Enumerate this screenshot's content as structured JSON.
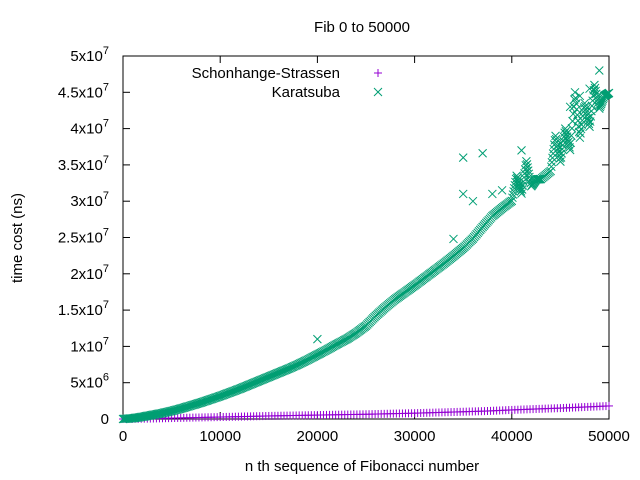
{
  "chart_data": {
    "type": "scatter",
    "title": "Fib 0 to 50000",
    "xlabel": "n th sequence of Fibonacci number",
    "ylabel": "time cost (ns)",
    "xlim": [
      0,
      50000
    ],
    "ylim": [
      0,
      50000000
    ],
    "x_ticks": [
      {
        "value": 0,
        "label": "0"
      },
      {
        "value": 10000,
        "label": "10000"
      },
      {
        "value": 20000,
        "label": "20000"
      },
      {
        "value": 30000,
        "label": "30000"
      },
      {
        "value": 40000,
        "label": "40000"
      },
      {
        "value": 50000,
        "label": "50000"
      }
    ],
    "y_ticks": [
      {
        "value": 0,
        "mant": "0",
        "exp": ""
      },
      {
        "value": 5000000,
        "mant": "5x10",
        "exp": "6"
      },
      {
        "value": 10000000,
        "mant": "1x10",
        "exp": "7"
      },
      {
        "value": 15000000,
        "mant": "1.5x10",
        "exp": "7"
      },
      {
        "value": 20000000,
        "mant": "2x10",
        "exp": "7"
      },
      {
        "value": 25000000,
        "mant": "2.5x10",
        "exp": "7"
      },
      {
        "value": 30000000,
        "mant": "3x10",
        "exp": "7"
      },
      {
        "value": 35000000,
        "mant": "3.5x10",
        "exp": "7"
      },
      {
        "value": 40000000,
        "mant": "4x10",
        "exp": "7"
      },
      {
        "value": 45000000,
        "mant": "4.5x10",
        "exp": "7"
      },
      {
        "value": 50000000,
        "mant": "5x10",
        "exp": "7"
      }
    ],
    "grid": false,
    "legend_position": "top-left",
    "series": [
      {
        "name": "Schonhange-Strassen",
        "marker": "plus",
        "color": "#9400d3",
        "points": [
          [
            0,
            0
          ],
          [
            2500,
            50000
          ],
          [
            5000,
            130000
          ],
          [
            7500,
            200000
          ],
          [
            10000,
            270000
          ],
          [
            12500,
            340000
          ],
          [
            15000,
            420000
          ],
          [
            17500,
            480000
          ],
          [
            20000,
            540000
          ],
          [
            22500,
            600000
          ],
          [
            25000,
            650000
          ],
          [
            27500,
            730000
          ],
          [
            30000,
            800000
          ],
          [
            32500,
            900000
          ],
          [
            35000,
            1000000
          ],
          [
            37500,
            1100000
          ],
          [
            40000,
            1250000
          ],
          [
            42500,
            1380000
          ],
          [
            45000,
            1500000
          ],
          [
            47500,
            1650000
          ],
          [
            50000,
            1800000
          ]
        ]
      },
      {
        "name": "Karatsuba",
        "marker": "cross",
        "color": "#009e73",
        "points": [
          [
            0,
            0
          ],
          [
            1000,
            100000
          ],
          [
            2000,
            300000
          ],
          [
            3000,
            550000
          ],
          [
            4000,
            800000
          ],
          [
            5000,
            1100000
          ],
          [
            6000,
            1450000
          ],
          [
            7000,
            1850000
          ],
          [
            8000,
            2250000
          ],
          [
            9000,
            2700000
          ],
          [
            10000,
            3150000
          ],
          [
            11000,
            3650000
          ],
          [
            12000,
            4150000
          ],
          [
            13000,
            4700000
          ],
          [
            14000,
            5250000
          ],
          [
            15000,
            5800000
          ],
          [
            16000,
            6350000
          ],
          [
            17000,
            6900000
          ],
          [
            18000,
            7500000
          ],
          [
            19000,
            8150000
          ],
          [
            20000,
            8850000
          ],
          [
            21000,
            9550000
          ],
          [
            22000,
            10300000
          ],
          [
            23000,
            11000000
          ],
          [
            24000,
            11850000
          ],
          [
            25000,
            12850000
          ],
          [
            26000,
            14200000
          ],
          [
            27000,
            15400000
          ],
          [
            28000,
            16500000
          ],
          [
            29000,
            17450000
          ],
          [
            30000,
            18400000
          ],
          [
            31000,
            19400000
          ],
          [
            32000,
            20400000
          ],
          [
            33000,
            21400000
          ],
          [
            34000,
            22450000
          ],
          [
            35000,
            23550000
          ],
          [
            36000,
            24850000
          ],
          [
            37000,
            26450000
          ],
          [
            38000,
            27950000
          ],
          [
            39000,
            29050000
          ],
          [
            40000,
            30050000
          ],
          [
            41000,
            31050000
          ],
          [
            42000,
            32050000
          ],
          [
            43000,
            33050000
          ],
          [
            44000,
            34150000
          ],
          [
            45000,
            35450000
          ],
          [
            46000,
            37050000
          ],
          [
            47000,
            38750000
          ],
          [
            48000,
            40250000
          ],
          [
            49000,
            42750000
          ],
          [
            50000,
            44900000
          ],
          [
            20000,
            11000000
          ],
          [
            34000,
            24800000
          ],
          [
            35000,
            36000000
          ],
          [
            35000,
            31000000
          ],
          [
            36000,
            30000000
          ],
          [
            37000,
            36600000
          ],
          [
            38000,
            31000000
          ],
          [
            39000,
            31500000
          ],
          [
            40500,
            33500000
          ],
          [
            41000,
            37000000
          ],
          [
            41500,
            35500000
          ],
          [
            42500,
            33000000
          ],
          [
            44500,
            39000000
          ],
          [
            45000,
            38000000
          ],
          [
            45500,
            40000000
          ],
          [
            46000,
            43000000
          ],
          [
            46500,
            45000000
          ],
          [
            47000,
            44500000
          ],
          [
            47500,
            43500000
          ],
          [
            48000,
            45500000
          ],
          [
            48500,
            46000000
          ],
          [
            49000,
            48000000
          ],
          [
            49500,
            44500000
          ]
        ]
      }
    ]
  }
}
